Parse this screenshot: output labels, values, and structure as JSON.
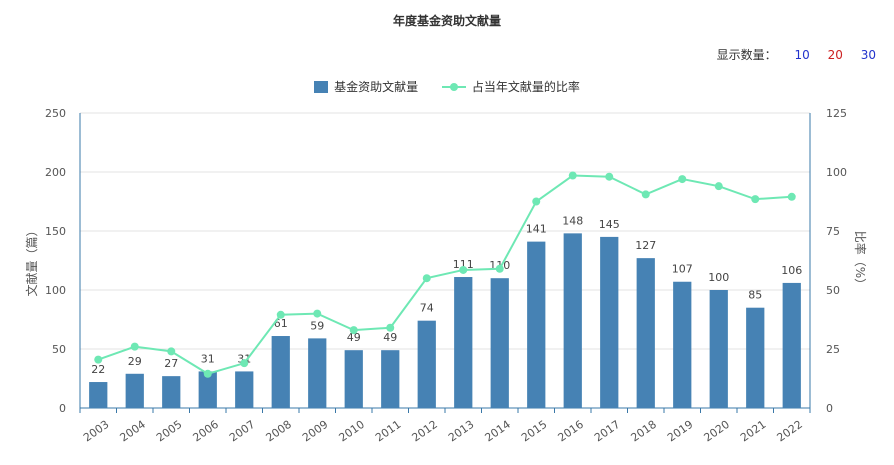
{
  "chart_data": {
    "type": "bar",
    "title": "年度基金资助文献量",
    "categories": [
      "2003",
      "2004",
      "2005",
      "2006",
      "2007",
      "2008",
      "2009",
      "2010",
      "2011",
      "2012",
      "2013",
      "2014",
      "2015",
      "2016",
      "2017",
      "2018",
      "2019",
      "2020",
      "2021",
      "2022"
    ],
    "series": [
      {
        "name": "基金资助文献量",
        "type": "bar",
        "axis": "left",
        "color": "#4682b4",
        "values": [
          22,
          29,
          27,
          31,
          31,
          61,
          59,
          49,
          49,
          74,
          111,
          110,
          141,
          148,
          145,
          127,
          107,
          100,
          85,
          106
        ]
      },
      {
        "name": "占当年文献量的比率",
        "type": "line",
        "axis": "right",
        "color": "#6ee8b4",
        "values": [
          20.5,
          26,
          24,
          14.5,
          19,
          39.5,
          40,
          33,
          34,
          55,
          58.5,
          59,
          87.5,
          98.5,
          98,
          90.5,
          97,
          94,
          88.5,
          89.5
        ]
      }
    ],
    "ylabel": "文献量（篇）",
    "y2label": "比率（%）",
    "ylim": [
      0,
      250
    ],
    "y_ticks": [
      0,
      50,
      100,
      150,
      200,
      250
    ],
    "y2lim": [
      0,
      125
    ],
    "y2_ticks": [
      0,
      25,
      50,
      75,
      100,
      125
    ],
    "grid": true,
    "legend_position": "top-center"
  },
  "controls": {
    "display_count_label": "显示数量：",
    "options": [
      "10",
      "20",
      "30"
    ]
  }
}
